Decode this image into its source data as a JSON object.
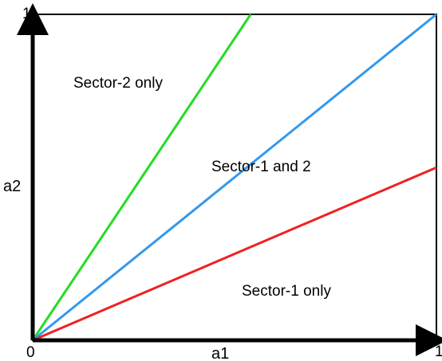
{
  "axes": {
    "x_label": "a1",
    "y_label": "a2",
    "origin_label": "0",
    "y_max_label": "1",
    "x_max_label": "1",
    "color": "#000000"
  },
  "regions": {
    "sector_2_only": "Sector-2 only",
    "sector_1_and_2": "Sector-1 and 2",
    "sector_1_only": "Sector-1 only"
  },
  "lines": [
    {
      "name": "green-line",
      "color": "#22dd22",
      "x_end": 0.54,
      "y_end": 1.0
    },
    {
      "name": "blue-line",
      "color": "#3399ee",
      "x_end": 1.0,
      "y_end": 1.0
    },
    {
      "name": "red-line",
      "color": "#ee2222",
      "x_end": 1.0,
      "y_end": 0.53
    }
  ]
}
